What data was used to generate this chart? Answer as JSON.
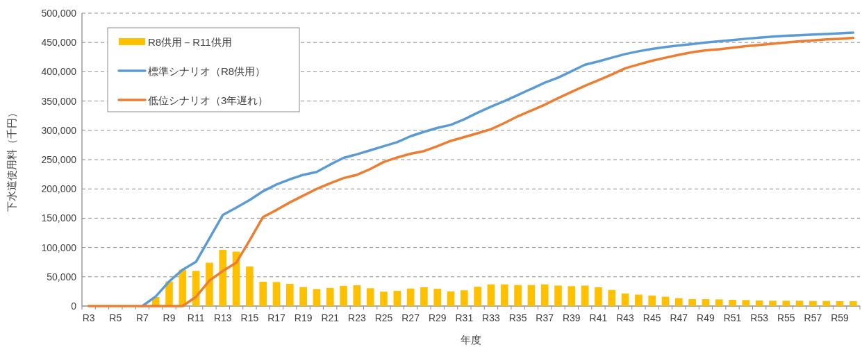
{
  "chart_data": {
    "type": "bar",
    "xlabel": "年度",
    "ylabel": "下水道使用料（千円）",
    "categories": [
      "R3",
      null,
      "R5",
      null,
      "R7",
      null,
      "R9",
      null,
      "R11",
      null,
      "R13",
      null,
      "R15",
      null,
      "R17",
      null,
      "R19",
      null,
      "R21",
      null,
      "R23",
      null,
      "R25",
      null,
      "R27",
      null,
      "R29",
      null,
      "R31",
      null,
      "R33",
      null,
      "R35",
      null,
      "R37",
      null,
      "R39",
      null,
      "R41",
      null,
      "R43",
      null,
      "R45",
      null,
      "R47",
      null,
      "R49",
      null,
      "R51",
      null,
      "R53",
      null,
      "R55",
      null,
      "R57",
      null,
      "R59",
      null
    ],
    "series": [
      {
        "name": "R8供用－R11供用",
        "color": "#ffc000",
        "values": [
          0,
          0,
          0,
          0,
          0,
          15500,
          42000,
          62000,
          60000,
          74000,
          96000,
          93000,
          67500,
          41500,
          41000,
          38000,
          32500,
          29000,
          31000,
          34500,
          35500,
          30500,
          24500,
          26000,
          30000,
          32000,
          29500,
          25000,
          27000,
          33000,
          37000,
          37000,
          36000,
          36000,
          37000,
          35000,
          34000,
          35000,
          32000,
          27500,
          21500,
          19500,
          18000,
          16000,
          13500,
          12000,
          11800,
          11400,
          10700,
          10300,
          9500,
          9100,
          9100,
          9100,
          8700,
          8700,
          8300,
          8300
        ]
      },
      {
        "name": "標準シナリオ（R8供用）",
        "type": "line",
        "color": "#5b9bd5",
        "values": [
          null,
          null,
          null,
          null,
          0,
          16500,
          42000,
          62000,
          75500,
          115500,
          155500,
          168000,
          181000,
          196000,
          207500,
          216500,
          224000,
          229000,
          241500,
          253000,
          259000,
          266000,
          273000,
          279700,
          290000,
          297400,
          304200,
          309400,
          318800,
          330200,
          340600,
          350000,
          360400,
          370800,
          381300,
          390000,
          401000,
          412000,
          417700,
          424000,
          430200,
          435000,
          439000,
          442200,
          444800,
          447400,
          450000,
          452000,
          454000,
          456300,
          458300,
          459900,
          461500,
          462500,
          463500,
          464600,
          465600,
          466700
        ]
      },
      {
        "name": "低位シナリオ（3年遅れ）",
        "type": "line",
        "color": "#ed7d31",
        "values": [
          0,
          0,
          0,
          0,
          0,
          0,
          0,
          0,
          15700,
          43300,
          59800,
          74000,
          112000,
          152000,
          164000,
          177000,
          188500,
          200000,
          209500,
          218500,
          224000,
          234000,
          246000,
          253600,
          260000,
          264600,
          273000,
          282000,
          288500,
          295000,
          302000,
          312500,
          324000,
          333800,
          343700,
          355000,
          365600,
          376000,
          385400,
          395300,
          406000,
          412500,
          418800,
          424000,
          429000,
          433300,
          436500,
          438500,
          441000,
          443800,
          445800,
          448000,
          450000,
          452000,
          453600,
          455200,
          456300,
          457800
        ]
      }
    ],
    "ylim": [
      0,
      500000
    ],
    "yticks": [
      {
        "value": 0,
        "label": "0"
      },
      {
        "value": 50000,
        "label": "50,000"
      },
      {
        "value": 100000,
        "label": "100,000"
      },
      {
        "value": 150000,
        "label": "150,000"
      },
      {
        "value": 200000,
        "label": "200,000"
      },
      {
        "value": 250000,
        "label": "250,000"
      },
      {
        "value": 300000,
        "label": "300,000"
      },
      {
        "value": 350000,
        "label": "350,000"
      },
      {
        "value": 400000,
        "label": "400,000"
      },
      {
        "value": 450000,
        "label": "450,000"
      },
      {
        "value": 500000,
        "label": "500,000"
      }
    ],
    "grid": "y",
    "legend": "top left"
  }
}
